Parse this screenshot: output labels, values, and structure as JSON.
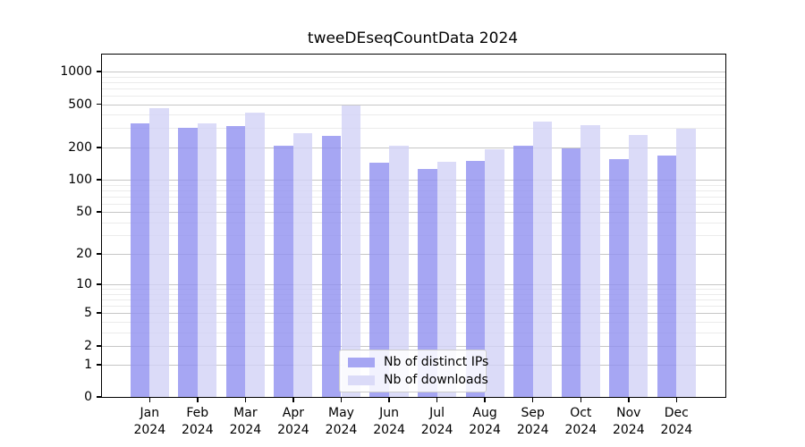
{
  "title": "tweeDEseqCountData 2024",
  "chart_data": {
    "type": "bar",
    "title": "tweeDEseqCountData 2024",
    "categories": [
      "Jan",
      "Feb",
      "Mar",
      "Apr",
      "May",
      "Jun",
      "Jul",
      "Aug",
      "Sep",
      "Oct",
      "Nov",
      "Dec"
    ],
    "category_year": "2024",
    "series": [
      {
        "name": "Nb of distinct IPs",
        "color": "rgba(144,144,240,0.8)",
        "swatch_color": "#a6a6f3",
        "values": [
          335,
          302,
          313,
          208,
          256,
          144,
          127,
          149,
          207,
          194,
          157,
          168
        ]
      },
      {
        "name": "Nb of downloads",
        "color": "rgba(210,210,246,0.8)",
        "swatch_color": "#dbdbf8",
        "values": [
          459,
          334,
          420,
          272,
          489,
          205,
          147,
          191,
          347,
          320,
          258,
          298
        ]
      }
    ],
    "y_ticks": [
      0,
      1,
      2,
      5,
      10,
      20,
      50,
      100,
      200,
      500,
      1000
    ],
    "y_scale": "log1p",
    "ylim": [
      0,
      1400
    ],
    "grid": true,
    "grid_minor_color": "#ebebeb",
    "grid_major_color": "#c6c6c6",
    "axis_color": "#000000",
    "legend_position": "bottom-center",
    "legend": [
      "Nb of distinct IPs",
      "Nb of downloads"
    ]
  }
}
